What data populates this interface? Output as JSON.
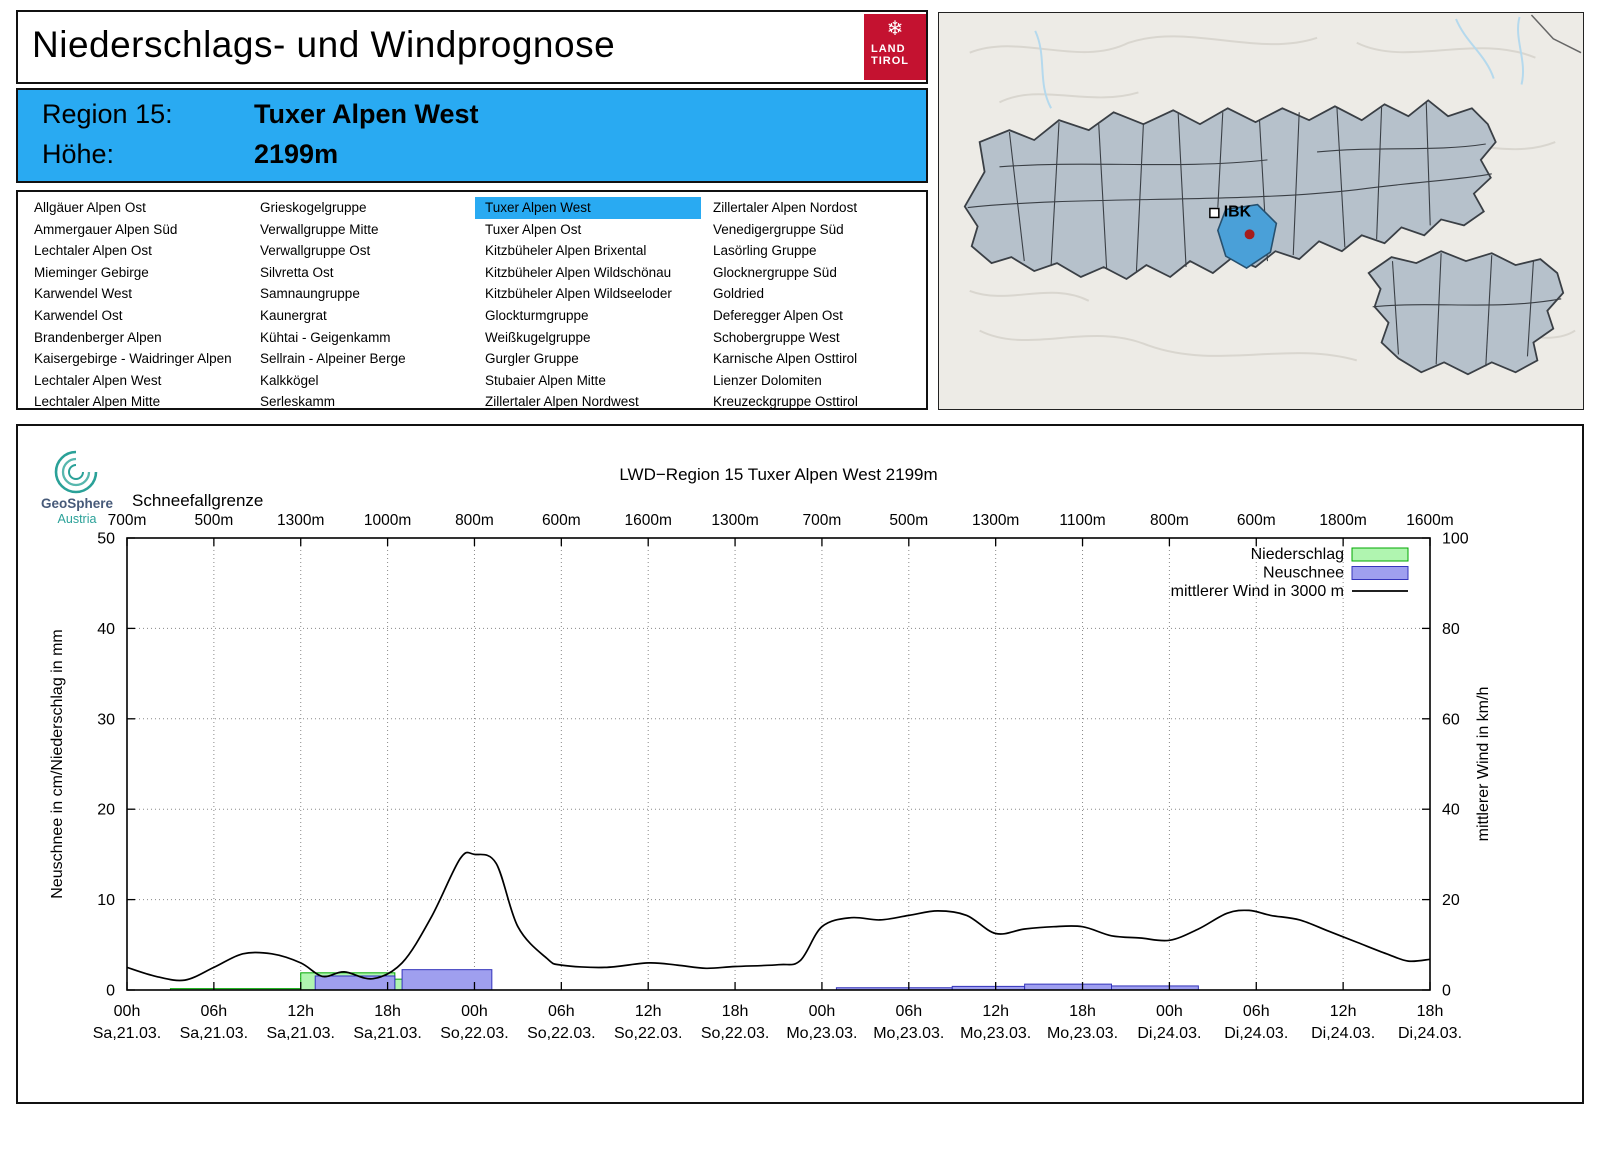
{
  "page": {
    "title": "Niederschlags- und Windprognose"
  },
  "logo": {
    "line1": "LAND",
    "line2": "TIROL"
  },
  "region_header": {
    "region_label": "Region 15:",
    "region_name": "Tuxer Alpen West",
    "altitude_label": "Höhe:",
    "altitude": "2199m"
  },
  "region_list": {
    "selected": "Tuxer Alpen West",
    "columns": [
      [
        "Allgäuer Alpen Ost",
        "Ammergauer Alpen Süd",
        "Lechtaler Alpen Ost",
        "Mieminger Gebirge",
        "Karwendel West",
        "Karwendel Ost",
        "Brandenberger Alpen",
        "Kaisergebirge - Waidringer Alpen",
        "Lechtaler Alpen West",
        "Lechtaler Alpen Mitte"
      ],
      [
        "Grieskogelgruppe",
        "Verwallgruppe Mitte",
        "Verwallgruppe Ost",
        "Silvretta Ost",
        "Samnaungruppe",
        "Kaunergrat",
        "Kühtai - Geigenkamm",
        "Sellrain - Alpeiner Berge",
        "Kalkkögel",
        "Serleskamm"
      ],
      [
        "Tuxer Alpen West",
        "Tuxer Alpen Ost",
        "Kitzbüheler Alpen Brixental",
        "Kitzbüheler Alpen Wildschönau",
        "Kitzbüheler Alpen Wildseeloder",
        "Glockturmgruppe",
        "Weißkugelgruppe",
        "Gurgler Gruppe",
        "Stubaier Alpen Mitte",
        "Zillertaler Alpen Nordwest"
      ],
      [
        "Zillertaler Alpen Nordost",
        "Venedigergruppe Süd",
        "Lasörling Gruppe",
        "Glocknergruppe Süd",
        "Goldried",
        "Deferegger Alpen Ost",
        "Schobergruppe West",
        "Karnische Alpen Osttirol",
        "Lienzer Dolomiten",
        "Kreuzeckgruppe Osttirol"
      ]
    ]
  },
  "map": {
    "ibk_label": "IBK"
  },
  "geosphere": {
    "name": "GeoSphere",
    "country": "Austria"
  },
  "chart_data": {
    "type": "bar+line",
    "title": "LWD−Region 15 Tuxer Alpen West 2199m",
    "top_axis": {
      "label": "Schneefallgrenze",
      "ticks": [
        "700m",
        "500m",
        "1300m",
        "1000m",
        "800m",
        "600m",
        "1600m",
        "1300m",
        "700m",
        "500m",
        "1300m",
        "1100m",
        "800m",
        "600m",
        "1800m",
        "1600m"
      ]
    },
    "x_axis": {
      "hours_total": 90,
      "hour_labels": [
        "00h",
        "06h",
        "12h",
        "18h",
        "00h",
        "06h",
        "12h",
        "18h",
        "00h",
        "06h",
        "12h",
        "18h",
        "00h",
        "06h",
        "12h",
        "18h"
      ],
      "day_labels": [
        "Sa,21.03.",
        "Sa,21.03.",
        "Sa,21.03.",
        "Sa,21.03.",
        "So,22.03.",
        "So,22.03.",
        "So,22.03.",
        "So,22.03.",
        "Mo,23.03.",
        "Mo,23.03.",
        "Mo,23.03.",
        "Mo,23.03.",
        "Di,24.03.",
        "Di,24.03.",
        "Di,24.03.",
        "Di,24.03."
      ]
    },
    "left_axis": {
      "label": "Neuschnee in cm/Niederschlag in mm",
      "min": 0,
      "max": 50,
      "ticks": [
        0,
        10,
        20,
        30,
        40,
        50
      ]
    },
    "right_axis": {
      "label": "mittlerer Wind in km/h",
      "min": 0,
      "max": 100,
      "ticks": [
        0,
        20,
        40,
        60,
        80,
        100
      ]
    },
    "legend": [
      {
        "label": "Niederschlag",
        "swatch": "precip"
      },
      {
        "label": "Neuschnee",
        "swatch": "snow"
      },
      {
        "label": "mittlerer Wind in 3000 m",
        "swatch": "wind-line"
      }
    ],
    "colors": {
      "precip_fill": "#b0f5b0",
      "precip_border": "#00a800",
      "snow_fill": "#9f9fef",
      "snow_border": "#3434bb",
      "wind": "#000000",
      "grid": "#888888"
    },
    "precipitation_bars": [
      {
        "from_h": 3,
        "to_h": 13,
        "value": 0.15
      },
      {
        "from_h": 12,
        "to_h": 18.5,
        "value": 1.9
      },
      {
        "from_h": 18.5,
        "to_h": 25,
        "value": 1.2
      }
    ],
    "snow_bars": [
      {
        "from_h": 13,
        "to_h": 18.5,
        "value": 1.55
      },
      {
        "from_h": 19,
        "to_h": 25.2,
        "value": 2.25
      },
      {
        "from_h": 49,
        "to_h": 57,
        "value": 0.25
      },
      {
        "from_h": 57,
        "to_h": 62,
        "value": 0.4
      },
      {
        "from_h": 62,
        "to_h": 68,
        "value": 0.65
      },
      {
        "from_h": 68,
        "to_h": 74,
        "value": 0.45
      }
    ],
    "wind_line": {
      "unit": "km/h",
      "points": [
        [
          0,
          5
        ],
        [
          2,
          3
        ],
        [
          4,
          2.2
        ],
        [
          6,
          5
        ],
        [
          8,
          8
        ],
        [
          10,
          8
        ],
        [
          12,
          6
        ],
        [
          13.5,
          3
        ],
        [
          15,
          4
        ],
        [
          17,
          2.5
        ],
        [
          19,
          6
        ],
        [
          21,
          16
        ],
        [
          23,
          29
        ],
        [
          24,
          30
        ],
        [
          25.5,
          28
        ],
        [
          27,
          14
        ],
        [
          29,
          7
        ],
        [
          30,
          5.5
        ],
        [
          33,
          5
        ],
        [
          36,
          6
        ],
        [
          38,
          5.5
        ],
        [
          40,
          4.8
        ],
        [
          42,
          5.2
        ],
        [
          45,
          5.6
        ],
        [
          46.5,
          6.5
        ],
        [
          48,
          14
        ],
        [
          50,
          16
        ],
        [
          52,
          15.5
        ],
        [
          54,
          16.5
        ],
        [
          56,
          17.5
        ],
        [
          58,
          16.5
        ],
        [
          60,
          12.5
        ],
        [
          62,
          13.5
        ],
        [
          64,
          14
        ],
        [
          66,
          14
        ],
        [
          68,
          12
        ],
        [
          70,
          11.5
        ],
        [
          72,
          11
        ],
        [
          74,
          13.5
        ],
        [
          76,
          17
        ],
        [
          77.5,
          17.6
        ],
        [
          79,
          16.5
        ],
        [
          81,
          15.5
        ],
        [
          83,
          13
        ],
        [
          85,
          10.5
        ],
        [
          87,
          8
        ],
        [
          88.5,
          6.4
        ],
        [
          90,
          6.8
        ]
      ]
    }
  }
}
